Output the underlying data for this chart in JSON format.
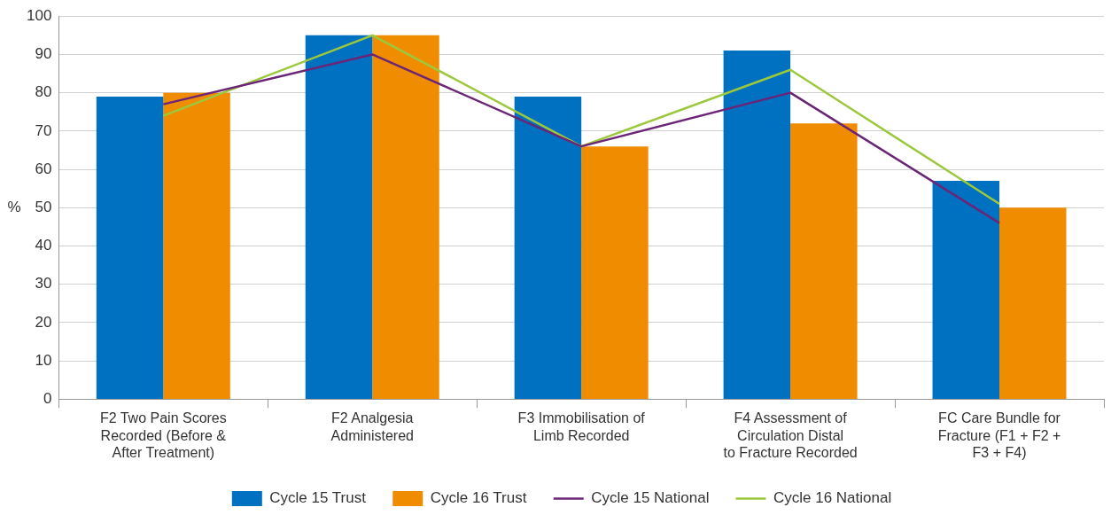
{
  "chart_data": {
    "type": "bar",
    "ylabel": "%",
    "categories": [
      "F2 Two Pain Scores Recorded (Before & After Treatment)",
      "F2 Analgesia Administered",
      "F3 Immobilisation of Limb Recorded",
      "F4 Assessment of Circulation Distal to Fracture Recorded",
      "FC Care Bundle for Fracture (F1 + F2 + F3 + F4)"
    ],
    "series": [
      {
        "name": "Cycle 15 Trust",
        "color": "#0070c0",
        "values": [
          79,
          95,
          79,
          91,
          57
        ]
      },
      {
        "name": "Cycle 16 Trust",
        "color": "#f08c00",
        "values": [
          80,
          95,
          66,
          72,
          50
        ]
      },
      {
        "name": "Cycle 15 National",
        "type": "line",
        "color": "#6b2577",
        "values": [
          77,
          90,
          66,
          80,
          46
        ]
      },
      {
        "name": "Cycle 16 National",
        "type": "line",
        "color": "#9cc83c",
        "values": [
          74,
          95,
          66,
          86,
          51
        ]
      }
    ],
    "ylim": [
      0,
      100
    ],
    "yticks": [
      0,
      10,
      20,
      30,
      40,
      50,
      60,
      70,
      80,
      90,
      100
    ],
    "grid": "y",
    "legend": "bottom",
    "marker": "none",
    "line_style": "solid"
  }
}
